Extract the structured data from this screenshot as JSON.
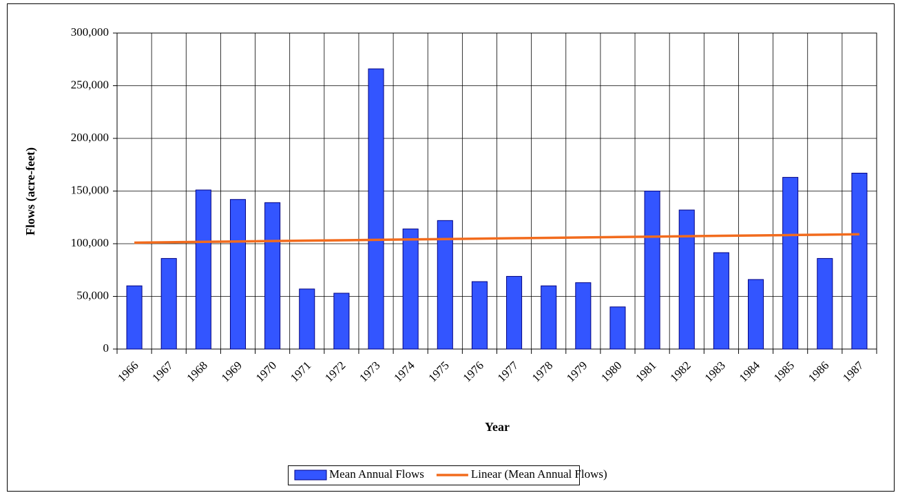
{
  "chart_data": {
    "type": "bar",
    "x_label": "Year",
    "y_label": "Flows  (acre-feet)",
    "categories": [
      "1966",
      "1967",
      "1968",
      "1969",
      "1970",
      "1971",
      "1972",
      "1973",
      "1974",
      "1975",
      "1976",
      "1977",
      "1978",
      "1979",
      "1980",
      "1981",
      "1982",
      "1983",
      "1984",
      "1985",
      "1986",
      "1987"
    ],
    "series": [
      {
        "name": "Mean Annual Flows",
        "type": "bar",
        "color": "#3355ff",
        "values": [
          60000,
          86000,
          151000,
          142000,
          139000,
          57000,
          53000,
          266000,
          114000,
          122000,
          64000,
          69000,
          60000,
          63000,
          40000,
          150000,
          132000,
          91500,
          66000,
          163000,
          86000,
          167000
        ]
      },
      {
        "name": "Linear (Mean Annual Flows)",
        "type": "line",
        "color": "#f26b1d",
        "values": [
          101000,
          101381,
          101762,
          102143,
          102524,
          102905,
          103286,
          103667,
          104048,
          104429,
          104810,
          105190,
          105571,
          105952,
          106333,
          106714,
          107095,
          107476,
          107857,
          108238,
          108619,
          109000
        ]
      }
    ],
    "ylim": [
      0,
      300000
    ],
    "yticks": [
      0,
      {
        "value": 50000,
        "label": "50,000"
      },
      {
        "value": 100000,
        "label": "100,000"
      },
      {
        "value": 150000,
        "label": "150,000"
      },
      {
        "value": 200000,
        "label": "200,000"
      },
      {
        "value": 250000,
        "label": "250,000"
      },
      {
        "value": 300000,
        "label": "300,000"
      }
    ],
    "grid": true,
    "legend": "bottom"
  }
}
